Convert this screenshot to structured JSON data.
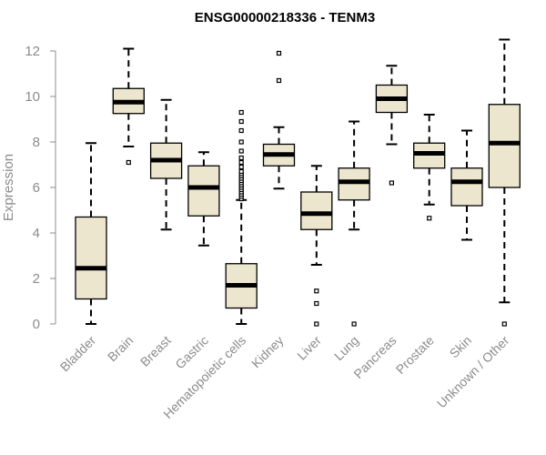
{
  "chart_data": {
    "type": "boxplot",
    "title": "ENSG00000218336 - TENM3",
    "ylabel": "Expression",
    "xlabel": "",
    "ylim": [
      0,
      12.5
    ],
    "yticks": [
      0,
      2,
      4,
      6,
      8,
      10,
      12
    ],
    "grid": false,
    "colors": {
      "box_fill": "#ede6cf",
      "stroke": "#000000",
      "axis": "#8c8c8c",
      "text": "#8c8c8c"
    },
    "categories": [
      "Bladder",
      "Brain",
      "Breast",
      "Gastric",
      "Hematopoietic cells",
      "Kidney",
      "Liver",
      "Lung",
      "Pancreas",
      "Prostate",
      "Skin",
      "Unknown / Other"
    ],
    "boxes": [
      {
        "name": "Bladder",
        "whisker_low": 0.0,
        "q1": 1.1,
        "median": 2.45,
        "q3": 4.7,
        "whisker_high": 7.95,
        "outliers": []
      },
      {
        "name": "Brain",
        "whisker_low": 7.8,
        "q1": 9.25,
        "median": 9.75,
        "q3": 10.35,
        "whisker_high": 12.1,
        "outliers": [
          7.1
        ]
      },
      {
        "name": "Breast",
        "whisker_low": 4.15,
        "q1": 6.4,
        "median": 7.2,
        "q3": 7.95,
        "whisker_high": 9.85,
        "outliers": []
      },
      {
        "name": "Gastric",
        "whisker_low": 3.45,
        "q1": 4.75,
        "median": 6.0,
        "q3": 6.95,
        "whisker_high": 7.55,
        "outliers": []
      },
      {
        "name": "Hematopoietic cells",
        "whisker_low": 0.0,
        "q1": 0.7,
        "median": 1.7,
        "q3": 2.65,
        "whisker_high": 5.45,
        "outliers": [
          5.5,
          5.6,
          5.7,
          5.8,
          5.9,
          6.0,
          6.1,
          6.2,
          6.3,
          6.4,
          6.5,
          6.6,
          6.7,
          6.9,
          7.1,
          7.3,
          7.6,
          8.0,
          8.5,
          8.9,
          9.3
        ]
      },
      {
        "name": "Kidney",
        "whisker_low": 5.95,
        "q1": 6.95,
        "median": 7.45,
        "q3": 7.9,
        "whisker_high": 8.65,
        "outliers": [
          10.7,
          11.9
        ]
      },
      {
        "name": "Liver",
        "whisker_low": 2.6,
        "q1": 4.15,
        "median": 4.85,
        "q3": 5.8,
        "whisker_high": 6.95,
        "outliers": [
          0.0,
          0.9,
          1.45
        ]
      },
      {
        "name": "Lung",
        "whisker_low": 4.15,
        "q1": 5.45,
        "median": 6.25,
        "q3": 6.85,
        "whisker_high": 8.9,
        "outliers": [
          0.0
        ]
      },
      {
        "name": "Pancreas",
        "whisker_low": 7.9,
        "q1": 9.3,
        "median": 9.9,
        "q3": 10.5,
        "whisker_high": 11.35,
        "outliers": [
          6.2
        ]
      },
      {
        "name": "Prostate",
        "whisker_low": 5.25,
        "q1": 6.85,
        "median": 7.5,
        "q3": 7.95,
        "whisker_high": 9.2,
        "outliers": [
          4.65
        ]
      },
      {
        "name": "Skin",
        "whisker_low": 3.7,
        "q1": 5.2,
        "median": 6.25,
        "q3": 6.85,
        "whisker_high": 8.5,
        "outliers": []
      },
      {
        "name": "Unknown / Other",
        "whisker_low": 0.95,
        "q1": 6.0,
        "median": 7.95,
        "q3": 9.65,
        "whisker_high": 12.5,
        "outliers": [
          0.0
        ]
      }
    ]
  }
}
